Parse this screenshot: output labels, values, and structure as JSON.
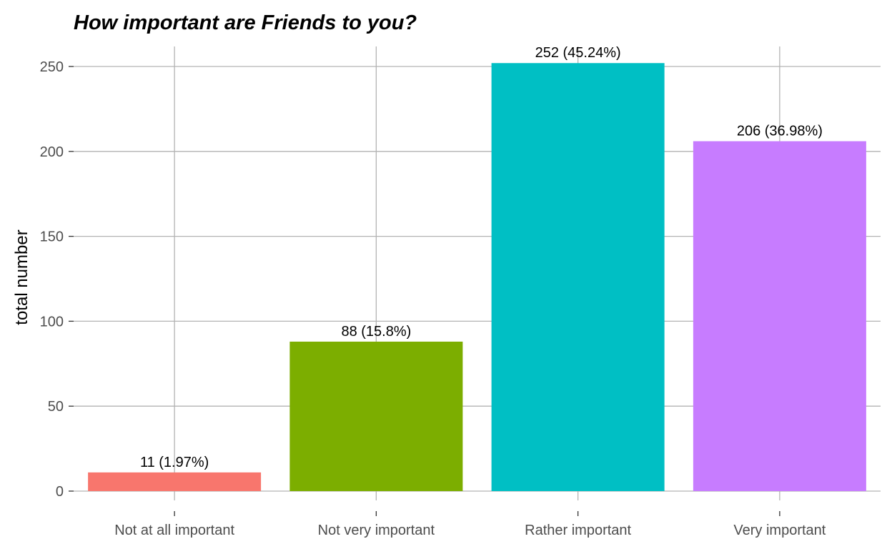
{
  "chart_data": {
    "type": "bar",
    "title": "How important are Friends to you?",
    "xlabel": "",
    "ylabel": "total number",
    "categories": [
      "Not at all important",
      "Not very important",
      "Rather important",
      "Very important"
    ],
    "values": [
      11,
      88,
      252,
      206
    ],
    "labels": [
      "11 (1.97%)",
      "88 (15.8%)",
      "252 (45.24%)",
      "206 (36.98%)"
    ],
    "colors": [
      "#F8766D",
      "#7CAE00",
      "#00BFC4",
      "#C77CFF"
    ],
    "ylim": [
      0,
      252
    ],
    "yticks": [
      0,
      50,
      100,
      150,
      200,
      250
    ],
    "grid": true,
    "legend": "none"
  }
}
